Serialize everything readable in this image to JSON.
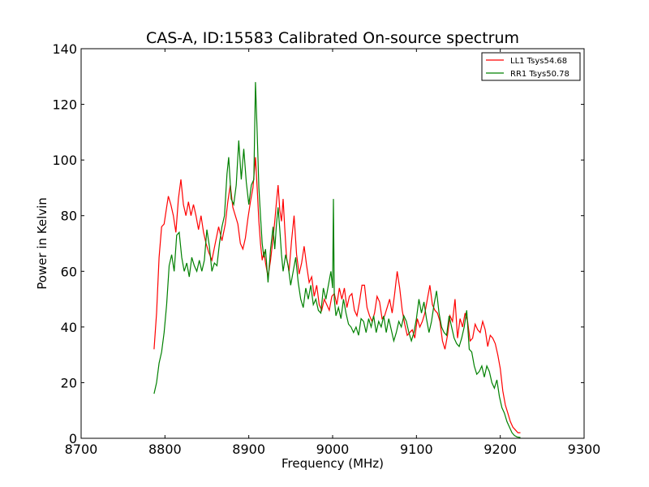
{
  "chart_data": {
    "type": "line",
    "title": "CAS-A, ID:15583 Calibrated On-source spectrum",
    "xlabel": "Frequency (MHz)",
    "ylabel": "Power in Kelvin",
    "xlim": [
      8700,
      9300
    ],
    "ylim": [
      0,
      140
    ],
    "xticks": [
      8700,
      8800,
      8900,
      9000,
      9100,
      9200,
      9300
    ],
    "yticks": [
      0,
      20,
      40,
      60,
      80,
      100,
      120,
      140
    ],
    "grid": false,
    "legend_position": "top-right",
    "series": [
      {
        "name": "LL1 Tsys54.68",
        "color": "#ff0000",
        "points": [
          [
            8787,
            32
          ],
          [
            8790,
            45
          ],
          [
            8793,
            65
          ],
          [
            8796,
            76
          ],
          [
            8799,
            77
          ],
          [
            8802,
            83
          ],
          [
            8804,
            87
          ],
          [
            8807,
            84
          ],
          [
            8810,
            80
          ],
          [
            8813,
            74
          ],
          [
            8816,
            86
          ],
          [
            8819,
            93
          ],
          [
            8822,
            84
          ],
          [
            8825,
            80
          ],
          [
            8828,
            85
          ],
          [
            8831,
            80
          ],
          [
            8834,
            84
          ],
          [
            8837,
            80
          ],
          [
            8840,
            75
          ],
          [
            8843,
            80
          ],
          [
            8846,
            74
          ],
          [
            8849,
            70
          ],
          [
            8852,
            67
          ],
          [
            8856,
            64
          ],
          [
            8860,
            70
          ],
          [
            8864,
            76
          ],
          [
            8868,
            71
          ],
          [
            8872,
            77
          ],
          [
            8875,
            85
          ],
          [
            8878,
            91
          ],
          [
            8881,
            83
          ],
          [
            8884,
            80
          ],
          [
            8887,
            77
          ],
          [
            8890,
            70
          ],
          [
            8893,
            68
          ],
          [
            8896,
            72
          ],
          [
            8899,
            79
          ],
          [
            8902,
            85
          ],
          [
            8905,
            90
          ],
          [
            8908,
            101
          ],
          [
            8910,
            90
          ],
          [
            8912,
            78
          ],
          [
            8914,
            70
          ],
          [
            8916,
            64
          ],
          [
            8918,
            67
          ],
          [
            8920,
            63
          ],
          [
            8923,
            58
          ],
          [
            8926,
            64
          ],
          [
            8929,
            72
          ],
          [
            8931,
            78
          ],
          [
            8933,
            85
          ],
          [
            8935,
            91
          ],
          [
            8937,
            82
          ],
          [
            8939,
            78
          ],
          [
            8941,
            86
          ],
          [
            8943,
            75
          ],
          [
            8945,
            65
          ],
          [
            8948,
            60
          ],
          [
            8951,
            71
          ],
          [
            8954,
            80
          ],
          [
            8957,
            66
          ],
          [
            8960,
            59
          ],
          [
            8963,
            63
          ],
          [
            8966,
            69
          ],
          [
            8969,
            62
          ],
          [
            8972,
            56
          ],
          [
            8975,
            58
          ],
          [
            8978,
            51
          ],
          [
            8981,
            55
          ],
          [
            8984,
            48
          ],
          [
            8987,
            46
          ],
          [
            8990,
            50
          ],
          [
            8993,
            48
          ],
          [
            8996,
            46
          ],
          [
            8999,
            51
          ],
          [
            9002,
            52
          ],
          [
            9005,
            48
          ],
          [
            9008,
            54
          ],
          [
            9011,
            50
          ],
          [
            9014,
            54
          ],
          [
            9017,
            47
          ],
          [
            9020,
            51
          ],
          [
            9023,
            52
          ],
          [
            9026,
            46
          ],
          [
            9029,
            44
          ],
          [
            9032,
            49
          ],
          [
            9035,
            55
          ],
          [
            9038,
            55
          ],
          [
            9041,
            47
          ],
          [
            9044,
            44
          ],
          [
            9047,
            42
          ],
          [
            9050,
            45
          ],
          [
            9053,
            51
          ],
          [
            9056,
            49
          ],
          [
            9059,
            43
          ],
          [
            9062,
            44
          ],
          [
            9065,
            47
          ],
          [
            9068,
            50
          ],
          [
            9071,
            45
          ],
          [
            9074,
            52
          ],
          [
            9077,
            60
          ],
          [
            9080,
            54
          ],
          [
            9083,
            46
          ],
          [
            9086,
            41
          ],
          [
            9089,
            37
          ],
          [
            9092,
            38
          ],
          [
            9095,
            39
          ],
          [
            9098,
            36
          ],
          [
            9101,
            43
          ],
          [
            9104,
            40
          ],
          [
            9107,
            42
          ],
          [
            9110,
            45
          ],
          [
            9113,
            50
          ],
          [
            9116,
            55
          ],
          [
            9119,
            48
          ],
          [
            9122,
            46
          ],
          [
            9125,
            45
          ],
          [
            9128,
            42
          ],
          [
            9131,
            35
          ],
          [
            9134,
            32
          ],
          [
            9137,
            37
          ],
          [
            9140,
            44
          ],
          [
            9143,
            42
          ],
          [
            9146,
            50
          ],
          [
            9149,
            36
          ],
          [
            9152,
            43
          ],
          [
            9155,
            40
          ],
          [
            9158,
            45
          ],
          [
            9161,
            42
          ],
          [
            9164,
            35
          ],
          [
            9167,
            36
          ],
          [
            9170,
            41
          ],
          [
            9173,
            39
          ],
          [
            9176,
            38
          ],
          [
            9179,
            42
          ],
          [
            9182,
            39
          ],
          [
            9185,
            33
          ],
          [
            9188,
            37
          ],
          [
            9191,
            36
          ],
          [
            9194,
            34
          ],
          [
            9197,
            30
          ],
          [
            9200,
            25
          ],
          [
            9203,
            17
          ],
          [
            9206,
            12
          ],
          [
            9209,
            9
          ],
          [
            9212,
            6
          ],
          [
            9215,
            4
          ],
          [
            9218,
            3
          ],
          [
            9221,
            2
          ],
          [
            9224,
            2
          ]
        ]
      },
      {
        "name": "RR1 Tsys50.78",
        "color": "#008000",
        "points": [
          [
            8787,
            16
          ],
          [
            8790,
            20
          ],
          [
            8793,
            27
          ],
          [
            8796,
            31
          ],
          [
            8799,
            38
          ],
          [
            8802,
            48
          ],
          [
            8805,
            62
          ],
          [
            8808,
            66
          ],
          [
            8811,
            60
          ],
          [
            8814,
            73
          ],
          [
            8817,
            74
          ],
          [
            8820,
            65
          ],
          [
            8823,
            60
          ],
          [
            8826,
            63
          ],
          [
            8829,
            58
          ],
          [
            8832,
            65
          ],
          [
            8835,
            62
          ],
          [
            8838,
            60
          ],
          [
            8841,
            64
          ],
          [
            8844,
            60
          ],
          [
            8847,
            64
          ],
          [
            8850,
            75
          ],
          [
            8853,
            69
          ],
          [
            8856,
            60
          ],
          [
            8859,
            63
          ],
          [
            8862,
            62
          ],
          [
            8865,
            70
          ],
          [
            8868,
            76
          ],
          [
            8871,
            80
          ],
          [
            8874,
            95
          ],
          [
            8876,
            101
          ],
          [
            8879,
            86
          ],
          [
            8882,
            84
          ],
          [
            8885,
            91
          ],
          [
            8888,
            107
          ],
          [
            8891,
            93
          ],
          [
            8894,
            104
          ],
          [
            8897,
            92
          ],
          [
            8900,
            84
          ],
          [
            8903,
            91
          ],
          [
            8906,
            93
          ],
          [
            8908,
            128
          ],
          [
            8910,
            110
          ],
          [
            8912,
            90
          ],
          [
            8914,
            80
          ],
          [
            8916,
            70
          ],
          [
            8918,
            65
          ],
          [
            8920,
            68
          ],
          [
            8923,
            56
          ],
          [
            8926,
            68
          ],
          [
            8929,
            76
          ],
          [
            8931,
            68
          ],
          [
            8933,
            77
          ],
          [
            8935,
            83
          ],
          [
            8937,
            75
          ],
          [
            8939,
            66
          ],
          [
            8941,
            60
          ],
          [
            8944,
            66
          ],
          [
            8947,
            62
          ],
          [
            8950,
            55
          ],
          [
            8953,
            60
          ],
          [
            8956,
            65
          ],
          [
            8959,
            56
          ],
          [
            8962,
            50
          ],
          [
            8965,
            47
          ],
          [
            8968,
            54
          ],
          [
            8971,
            50
          ],
          [
            8974,
            55
          ],
          [
            8977,
            48
          ],
          [
            8980,
            50
          ],
          [
            8983,
            46
          ],
          [
            8986,
            45
          ],
          [
            8989,
            54
          ],
          [
            8992,
            50
          ],
          [
            8995,
            55
          ],
          [
            8998,
            60
          ],
          [
            9000,
            54
          ],
          [
            9001,
            86
          ],
          [
            9002,
            50
          ],
          [
            9004,
            44
          ],
          [
            9007,
            47
          ],
          [
            9010,
            43
          ],
          [
            9013,
            50
          ],
          [
            9016,
            45
          ],
          [
            9019,
            41
          ],
          [
            9022,
            40
          ],
          [
            9025,
            38
          ],
          [
            9028,
            40
          ],
          [
            9031,
            37
          ],
          [
            9034,
            43
          ],
          [
            9037,
            42
          ],
          [
            9040,
            38
          ],
          [
            9043,
            43
          ],
          [
            9046,
            40
          ],
          [
            9049,
            44
          ],
          [
            9052,
            38
          ],
          [
            9055,
            42
          ],
          [
            9058,
            40
          ],
          [
            9061,
            44
          ],
          [
            9064,
            38
          ],
          [
            9067,
            43
          ],
          [
            9070,
            39
          ],
          [
            9073,
            35
          ],
          [
            9076,
            38
          ],
          [
            9079,
            42
          ],
          [
            9082,
            40
          ],
          [
            9085,
            44
          ],
          [
            9088,
            42
          ],
          [
            9091,
            38
          ],
          [
            9094,
            35
          ],
          [
            9097,
            38
          ],
          [
            9100,
            43
          ],
          [
            9103,
            50
          ],
          [
            9106,
            45
          ],
          [
            9109,
            49
          ],
          [
            9112,
            43
          ],
          [
            9115,
            38
          ],
          [
            9118,
            42
          ],
          [
            9121,
            48
          ],
          [
            9124,
            53
          ],
          [
            9127,
            45
          ],
          [
            9130,
            40
          ],
          [
            9133,
            38
          ],
          [
            9136,
            37
          ],
          [
            9139,
            44
          ],
          [
            9142,
            40
          ],
          [
            9145,
            36
          ],
          [
            9148,
            34
          ],
          [
            9151,
            33
          ],
          [
            9154,
            36
          ],
          [
            9157,
            40
          ],
          [
            9160,
            46
          ],
          [
            9163,
            32
          ],
          [
            9166,
            31
          ],
          [
            9169,
            26
          ],
          [
            9172,
            23
          ],
          [
            9175,
            24
          ],
          [
            9178,
            26
          ],
          [
            9181,
            22
          ],
          [
            9184,
            26
          ],
          [
            9187,
            24
          ],
          [
            9190,
            20
          ],
          [
            9193,
            18
          ],
          [
            9196,
            21
          ],
          [
            9199,
            15
          ],
          [
            9202,
            11
          ],
          [
            9205,
            9
          ],
          [
            9208,
            6
          ],
          [
            9211,
            4
          ],
          [
            9214,
            2
          ],
          [
            9217,
            1
          ],
          [
            9220,
            0.5
          ],
          [
            9224,
            0.3
          ]
        ]
      }
    ]
  }
}
